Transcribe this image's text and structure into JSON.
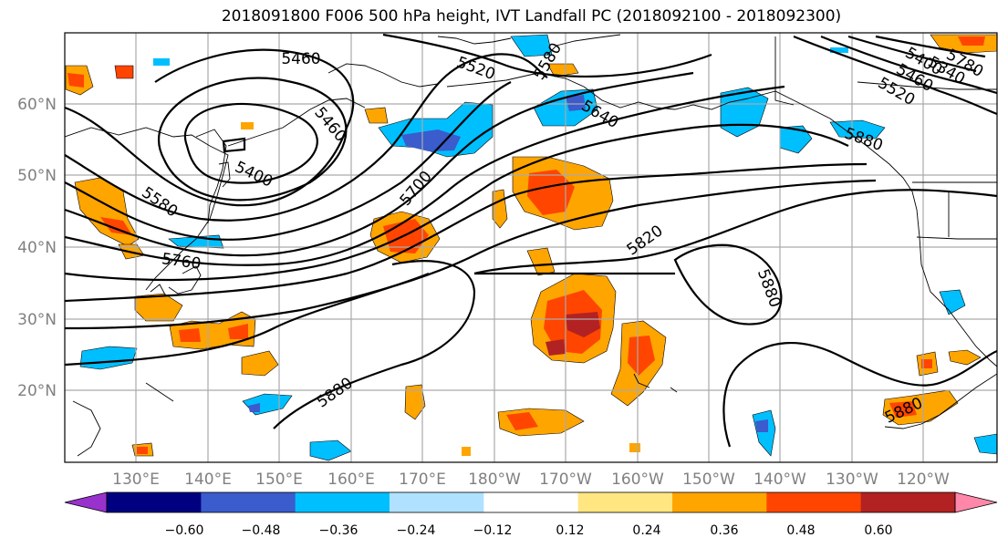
{
  "map": {
    "title": "2018091800 F006 500 hPa height, IVT Landfall PC (2018092100 - 2018092300)",
    "lat_labels": [
      "60°N",
      "50°N",
      "40°N",
      "30°N",
      "20°N"
    ],
    "lon_labels": [
      "130°E",
      "140°E",
      "150°E",
      "160°E",
      "170°E",
      "180°W",
      "170°W",
      "160°W",
      "150°W",
      "140°W",
      "130°W",
      "120°W"
    ],
    "contour_labels": [
      "5460",
      "5520",
      "5580",
      "5640",
      "5400",
      "5460",
      "5580",
      "5700",
      "5760",
      "5820",
      "5880",
      "5880",
      "5880",
      "5460",
      "5400",
      "5340",
      "5780",
      "5520",
      "5880"
    ]
  },
  "colorbar": {
    "ticks": [
      "−0.60",
      "−0.48",
      "−0.36",
      "−0.24",
      "−0.12",
      "0.12",
      "0.24",
      "0.36",
      "0.48",
      "0.60"
    ],
    "colors": [
      "#9932cc",
      "#000080",
      "#3a5ccc",
      "#00bfff",
      "#b0e2ff",
      "#ffffff",
      "#ffe680",
      "#ffa500",
      "#ff4500",
      "#b22222",
      "#ff88aa"
    ]
  }
}
